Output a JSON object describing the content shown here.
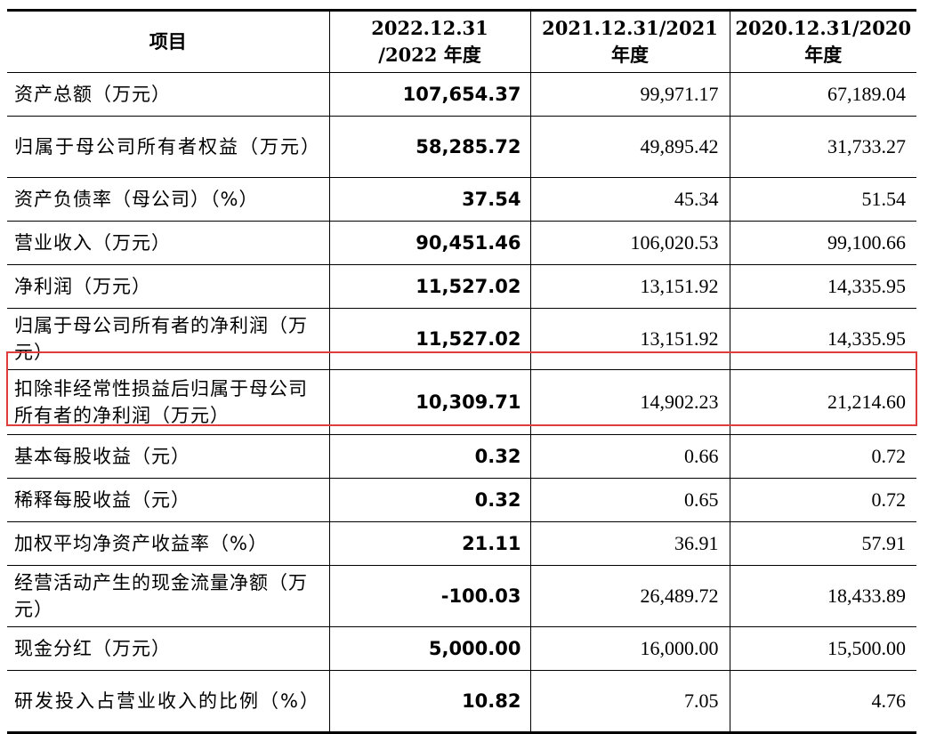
{
  "table": {
    "headers": [
      "项目",
      "2022.12.31\n/2022 年度",
      "2021.12.31/2021\n年度",
      "2020.12.31/2020\n年度"
    ],
    "rows": [
      {
        "item": "资产总额（万元）",
        "y2022": "107,654.37",
        "y2021": "99,971.17",
        "y2020": "67,189.04"
      },
      {
        "item": "归属于母公司所有者权益（万元）",
        "y2022": "58,285.72",
        "y2021": "49,895.42",
        "y2020": "31,733.27"
      },
      {
        "item": "资产负债率（母公司）（%）",
        "y2022": "37.54",
        "y2021": "45.34",
        "y2020": "51.54"
      },
      {
        "item": "营业收入（万元）",
        "y2022": "90,451.46",
        "y2021": "106,020.53",
        "y2020": "99,100.66"
      },
      {
        "item": "净利润（万元）",
        "y2022": "11,527.02",
        "y2021": "13,151.92",
        "y2020": "14,335.95"
      },
      {
        "item": "归属于母公司所有者的净利润（万元）",
        "y2022": "11,527.02",
        "y2021": "13,151.92",
        "y2020": "14,335.95"
      },
      {
        "item": "扣除非经常性损益后归属于母公司所有者的净利润（万元）",
        "y2022": "10,309.71",
        "y2021": "14,902.23",
        "y2020": "21,214.60"
      },
      {
        "item": "基本每股收益（元）",
        "y2022": "0.32",
        "y2021": "0.66",
        "y2020": "0.72"
      },
      {
        "item": "稀释每股收益（元）",
        "y2022": "0.32",
        "y2021": "0.65",
        "y2020": "0.72"
      },
      {
        "item": "加权平均净资产收益率（%）",
        "y2022": "21.11",
        "y2021": "36.91",
        "y2020": "57.91"
      },
      {
        "item": "经营活动产生的现金流量净额（万元）",
        "y2022": "-100.03",
        "y2021": "26,489.72",
        "y2020": "18,433.89"
      },
      {
        "item": "现金分红（万元）",
        "y2022": "5,000.00",
        "y2021": "16,000.00",
        "y2020": "15,500.00"
      },
      {
        "item": "研发投入占营业收入的比例（%）",
        "y2022": "10.82",
        "y2021": "7.05",
        "y2020": "4.76"
      }
    ]
  },
  "highlight": {
    "row_index": 6,
    "color": "#e03c3c"
  }
}
